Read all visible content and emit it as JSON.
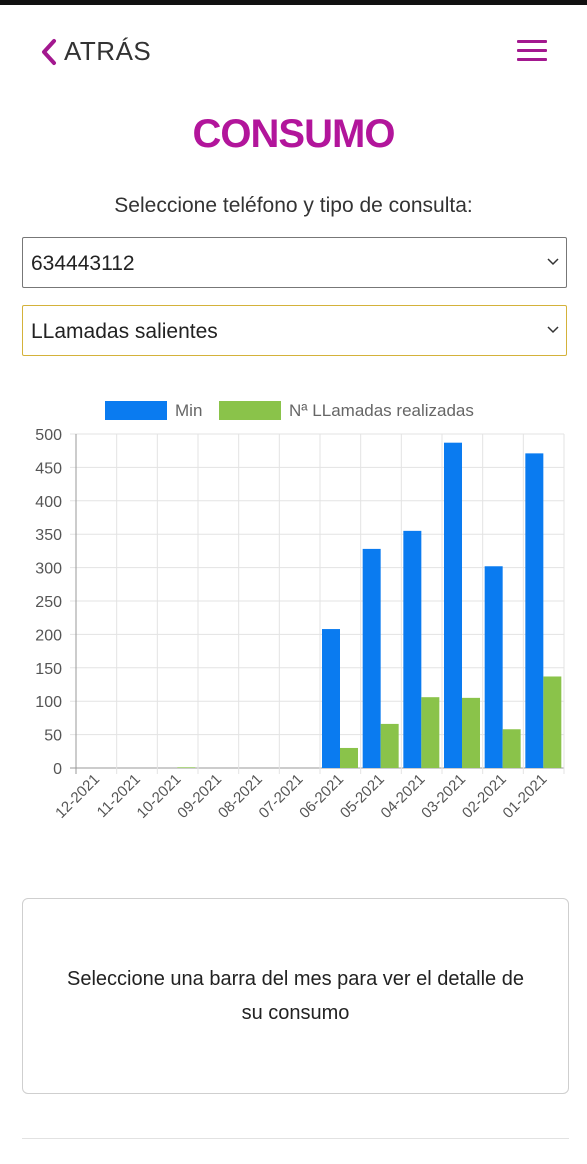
{
  "header": {
    "back_label": "ATRÁS",
    "back_icon": "chevron-left-icon",
    "menu_icon": "hamburger-menu-icon"
  },
  "page": {
    "title": "CONSUMO",
    "subtitle": "Seleccione teléfono y tipo de consulta:"
  },
  "selects": {
    "phone": {
      "value": "634443112"
    },
    "query_type": {
      "value": "LLamadas salientes"
    }
  },
  "colors": {
    "accent": "#b2159b",
    "series_min": "#0a7bf0",
    "series_calls": "#8ac34a"
  },
  "chart_data": {
    "type": "bar",
    "categories": [
      "12-2021",
      "11-2021",
      "10-2021",
      "09-2021",
      "08-2021",
      "07-2021",
      "06-2021",
      "05-2021",
      "04-2021",
      "03-2021",
      "02-2021",
      "01-2021"
    ],
    "series": [
      {
        "name": "Min",
        "color": "#0a7bf0",
        "values": [
          0,
          0,
          0,
          0,
          0,
          0,
          208,
          328,
          355,
          487,
          302,
          471
        ]
      },
      {
        "name": "Nª LLamadas realizadas",
        "color": "#8ac34a",
        "values": [
          0,
          0,
          1,
          0,
          0,
          0,
          30,
          66,
          106,
          105,
          58,
          137
        ]
      }
    ],
    "ylim": [
      0,
      500
    ],
    "yticks": [
      0,
      50,
      100,
      150,
      200,
      250,
      300,
      350,
      400,
      450,
      500
    ],
    "grid": true,
    "legend": "top-center"
  },
  "detail": {
    "text": "Seleccione una barra del mes para ver el detalle de su consumo"
  }
}
